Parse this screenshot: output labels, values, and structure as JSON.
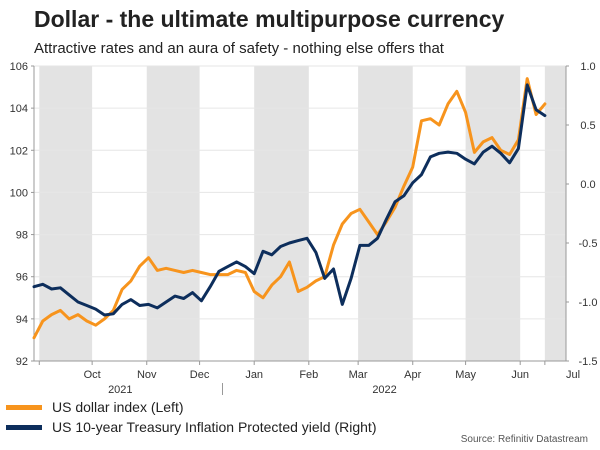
{
  "header": {
    "title": "Dollar - the ultimate multipurpose currency",
    "subtitle": "Attractive rates and an aura of safety - nothing else offers that"
  },
  "source": "Source: Refinitiv Datastream",
  "colors": {
    "orange": "#f7941d",
    "navy": "#0d2e5c",
    "shade": "#e3e3e3",
    "grid": "#e6e6e6"
  },
  "chart_data": {
    "type": "line",
    "title": "Dollar - the ultimate multipurpose currency",
    "subtitle": "Attractive rates and an aura of safety - nothing else offers that",
    "x_unit": "days since 2021-09-13",
    "xlim": [
      0,
      302
    ],
    "x_ticks": [
      {
        "label": "Oct",
        "pos": 33
      },
      {
        "label": "Nov",
        "pos": 64
      },
      {
        "label": "Dec",
        "pos": 94
      },
      {
        "label": "Jan",
        "pos": 125
      },
      {
        "label": "Feb",
        "pos": 156
      },
      {
        "label": "Mar",
        "pos": 184
      },
      {
        "label": "Apr",
        "pos": 215
      },
      {
        "label": "May",
        "pos": 245
      },
      {
        "label": "Jun",
        "pos": 276
      },
      {
        "label": "Jul",
        "pos": 306
      }
    ],
    "year_labels": [
      {
        "label": "2021",
        "pos": 49
      },
      {
        "label": "2022",
        "pos": 199
      }
    ],
    "shaded_months": [
      [
        3,
        33
      ],
      [
        64,
        94
      ],
      [
        125,
        156
      ],
      [
        184,
        215
      ],
      [
        245,
        276
      ],
      [
        290,
        302
      ]
    ],
    "left_axis": {
      "label": "US dollar index (Left)",
      "ylim": [
        92,
        106
      ],
      "ticks": [
        92,
        94,
        96,
        98,
        100,
        102,
        104,
        106
      ]
    },
    "right_axis": {
      "label": "US 10-year Treasury Inflation Protected yield (Right)",
      "ylim": [
        -1.5,
        1.0
      ],
      "ticks": [
        "1.0",
        "0.5",
        "0.0",
        "-0.5",
        "-1.0",
        "-1.5"
      ]
    },
    "series": [
      {
        "name": "US dollar index (Left)",
        "axis": "left",
        "color": "#f7941d",
        "x": [
          0,
          5,
          10,
          15,
          20,
          25,
          30,
          35,
          40,
          45,
          50,
          55,
          60,
          65,
          70,
          75,
          80,
          85,
          90,
          95,
          100,
          105,
          110,
          115,
          120,
          125,
          130,
          135,
          140,
          145,
          150,
          155,
          160,
          165,
          170,
          175,
          180,
          185,
          190,
          195,
          200,
          205,
          210,
          215,
          220,
          225,
          230,
          235,
          240,
          245,
          250,
          255,
          260,
          265,
          270,
          275,
          280,
          285,
          290
        ],
        "values": [
          93.1,
          93.9,
          94.2,
          94.4,
          94.0,
          94.2,
          93.9,
          93.7,
          94.0,
          94.4,
          95.4,
          95.8,
          96.5,
          96.9,
          96.3,
          96.4,
          96.3,
          96.2,
          96.3,
          96.2,
          96.1,
          96.1,
          96.1,
          96.3,
          96.2,
          95.3,
          95.0,
          95.6,
          96.0,
          96.7,
          95.3,
          95.5,
          95.8,
          96.0,
          97.5,
          98.5,
          99.0,
          99.2,
          98.6,
          98.0,
          98.6,
          99.3,
          100.3,
          101.2,
          103.4,
          103.5,
          103.2,
          104.2,
          104.8,
          103.8,
          101.9,
          102.4,
          102.6,
          102.0,
          101.8,
          102.5,
          105.4,
          103.7,
          104.2
        ]
      },
      {
        "name": "US 10-year Treasury Inflation Protected yield (Right)",
        "axis": "right",
        "color": "#0d2e5c",
        "x": [
          0,
          5,
          10,
          15,
          20,
          25,
          30,
          35,
          40,
          45,
          50,
          55,
          60,
          65,
          70,
          75,
          80,
          85,
          90,
          95,
          100,
          105,
          110,
          115,
          120,
          125,
          130,
          135,
          140,
          145,
          150,
          155,
          160,
          165,
          170,
          175,
          180,
          185,
          190,
          195,
          200,
          205,
          210,
          215,
          220,
          225,
          230,
          235,
          240,
          245,
          250,
          255,
          260,
          265,
          270,
          275,
          280,
          285,
          290
        ],
        "values": [
          -0.87,
          -0.85,
          -0.89,
          -0.88,
          -0.94,
          -1.0,
          -1.03,
          -1.06,
          -1.11,
          -1.1,
          -1.02,
          -0.98,
          -1.03,
          -1.02,
          -1.05,
          -1.0,
          -0.95,
          -0.97,
          -0.92,
          -0.99,
          -0.87,
          -0.74,
          -0.7,
          -0.66,
          -0.7,
          -0.76,
          -0.57,
          -0.6,
          -0.53,
          -0.5,
          -0.48,
          -0.46,
          -0.58,
          -0.8,
          -0.72,
          -1.02,
          -0.8,
          -0.52,
          -0.52,
          -0.46,
          -0.3,
          -0.15,
          -0.1,
          0.01,
          0.08,
          0.23,
          0.26,
          0.27,
          0.26,
          0.21,
          0.17,
          0.27,
          0.32,
          0.26,
          0.18,
          0.3,
          0.84,
          0.63,
          0.58
        ]
      }
    ]
  }
}
